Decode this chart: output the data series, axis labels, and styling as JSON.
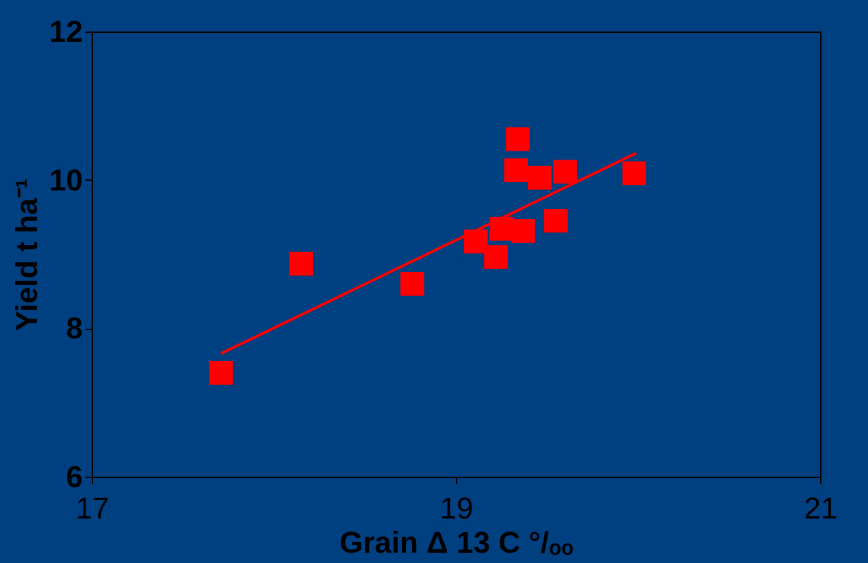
{
  "chart_data": {
    "type": "scatter",
    "xlabel": "Grain Δ 13 C °/ₒₒ",
    "ylabel": "Yield t ha⁻¹",
    "xlim": [
      17,
      21
    ],
    "xticks": [
      17,
      19,
      21
    ],
    "ylim": [
      6,
      12
    ],
    "yticks": [
      6,
      8,
      10,
      12
    ],
    "grid": false,
    "series": [
      {
        "color": "#ff0000",
        "marker": "square",
        "x": [
          17.71,
          18.15,
          18.76,
          19.11,
          19.25,
          19.22,
          19.37,
          19.55,
          19.34,
          19.33,
          19.46,
          19.6,
          19.98
        ],
        "values": [
          7.4,
          8.87,
          8.6,
          9.17,
          9.34,
          8.96,
          9.31,
          9.45,
          10.55,
          10.13,
          10.03,
          10.11,
          10.09
        ]
      },
      {
        "type": "line",
        "color": "#ff0000",
        "x": [
          17.71,
          19.99
        ],
        "values": [
          7.66,
          10.36
        ]
      }
    ]
  }
}
